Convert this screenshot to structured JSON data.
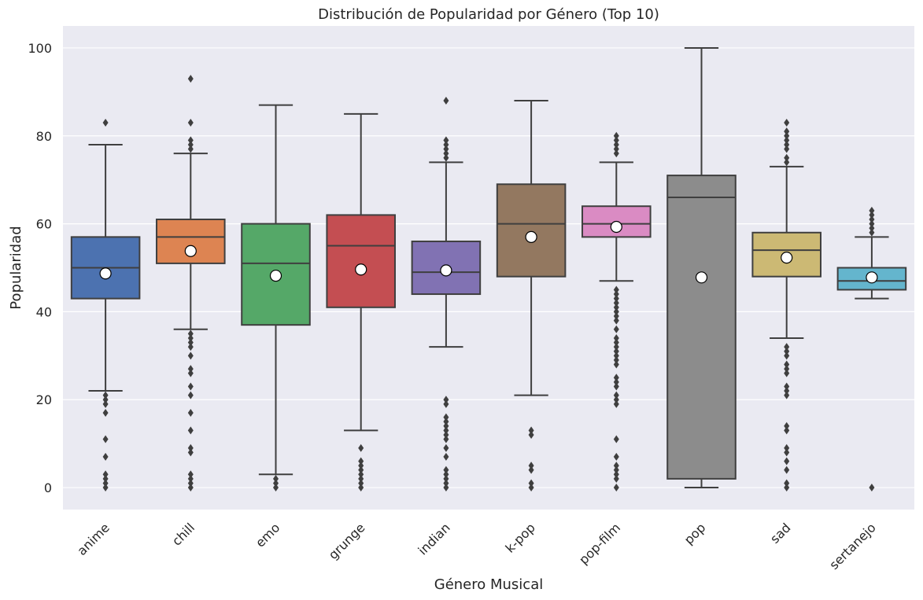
{
  "chart_data": {
    "type": "box",
    "title": "Distribución de Popularidad por Género (Top 10)",
    "xlabel": "Género Musical",
    "ylabel": "Popularidad",
    "ylim": [
      -5,
      105
    ],
    "yticks": [
      0,
      20,
      40,
      60,
      80,
      100
    ],
    "grid": true,
    "colors": {
      "background": "#eaeaf2",
      "grid": "#ffffff",
      "line": "#3f3f3f",
      "mean_marker_fill": "#ffffff",
      "mean_marker_stroke": "#000000"
    },
    "categories": [
      "anime",
      "chill",
      "emo",
      "grunge",
      "indian",
      "k-pop",
      "pop-film",
      "pop",
      "sad",
      "sertanejo"
    ],
    "boxes": [
      {
        "category": "anime",
        "color": "#4c72b0",
        "whisker_low": 22,
        "q1": 43,
        "median": 50,
        "q3": 57,
        "whisker_high": 78,
        "mean": 48.7,
        "outliers": [
          83,
          21,
          20,
          19,
          17,
          11,
          7,
          3,
          2,
          1,
          0
        ]
      },
      {
        "category": "chill",
        "color": "#dd8452",
        "whisker_low": 36,
        "q1": 51,
        "median": 57,
        "q3": 61,
        "whisker_high": 76,
        "mean": 53.8,
        "outliers": [
          93,
          83,
          79,
          78,
          77,
          35,
          34,
          33,
          32,
          30,
          27,
          26,
          23,
          21,
          17,
          13,
          9,
          8,
          3,
          2,
          1,
          0
        ]
      },
      {
        "category": "emo",
        "color": "#55a868",
        "whisker_low": 3,
        "q1": 37,
        "median": 51,
        "q3": 60,
        "whisker_high": 87,
        "mean": 48.2,
        "outliers": [
          2,
          1,
          0
        ]
      },
      {
        "category": "grunge",
        "color": "#c44e52",
        "whisker_low": 13,
        "q1": 41,
        "median": 55,
        "q3": 62,
        "whisker_high": 85,
        "mean": 49.6,
        "outliers": [
          9,
          6,
          5,
          4,
          3,
          2,
          1,
          0
        ]
      },
      {
        "category": "indian",
        "color": "#8172b3",
        "whisker_low": 32,
        "q1": 44,
        "median": 49,
        "q3": 56,
        "whisker_high": 74,
        "mean": 49.4,
        "outliers": [
          88,
          79,
          78,
          77,
          76,
          75,
          20,
          19,
          16,
          15,
          14,
          13,
          12,
          11,
          9,
          7,
          4,
          3,
          2,
          1,
          0
        ]
      },
      {
        "category": "k-pop",
        "color": "#937860",
        "whisker_low": 21,
        "q1": 48,
        "median": 60,
        "q3": 69,
        "whisker_high": 88,
        "mean": 57,
        "outliers": [
          13,
          12,
          5,
          4,
          1,
          0
        ]
      },
      {
        "category": "pop-film",
        "color": "#da8bc3",
        "whisker_low": 47,
        "q1": 57,
        "median": 60,
        "q3": 64,
        "whisker_high": 74,
        "mean": 59.3,
        "outliers": [
          80,
          79,
          78,
          77,
          76,
          45,
          44,
          43,
          42,
          41,
          40,
          39,
          38,
          36,
          34,
          33,
          32,
          31,
          30,
          29,
          28,
          25,
          24,
          23,
          21,
          20,
          19,
          11,
          7,
          5,
          4,
          3,
          2,
          0
        ]
      },
      {
        "category": "pop",
        "color": "#8c8c8c",
        "whisker_low": 0,
        "q1": 2,
        "median": 66,
        "q3": 71,
        "whisker_high": 100,
        "mean": 47.8,
        "outliers": []
      },
      {
        "category": "sad",
        "color": "#ccb974",
        "whisker_low": 34,
        "q1": 48,
        "median": 54,
        "q3": 58,
        "whisker_high": 73,
        "mean": 52.3,
        "outliers": [
          83,
          81,
          80,
          79,
          78,
          77,
          75,
          74,
          32,
          31,
          30,
          28,
          27,
          26,
          23,
          22,
          21,
          14,
          13,
          9,
          8,
          6,
          4,
          1,
          0
        ]
      },
      {
        "category": "sertanejo",
        "color": "#64b5cd",
        "whisker_low": 43,
        "q1": 45,
        "median": 47,
        "q3": 50,
        "whisker_high": 57,
        "mean": 47.8,
        "outliers": [
          63,
          62,
          61,
          60,
          59,
          58,
          0
        ]
      }
    ]
  }
}
